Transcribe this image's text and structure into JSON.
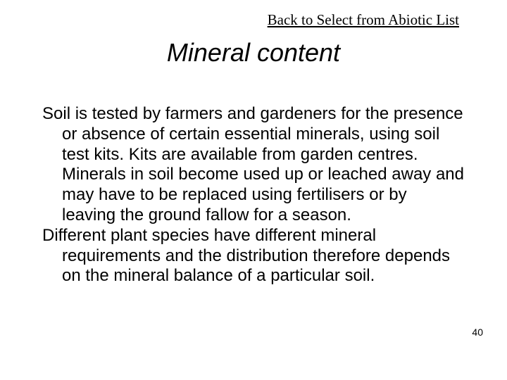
{
  "nav": {
    "back_link_text": "Back to Select from Abiotic List"
  },
  "heading": {
    "title": "Mineral content"
  },
  "content": {
    "paragraph1": "Soil is tested by farmers and gardeners for the presence or absence of certain essential minerals, using soil test kits. Kits are available from garden centres. Minerals in soil become used up or leached away and may have to be replaced using fertilisers or by leaving the ground fallow for a season.",
    "paragraph2": "Different plant species have different mineral requirements and the distribution therefore depends on the mineral balance of a particular soil."
  },
  "footer": {
    "page_number": "40"
  },
  "style": {
    "background_color": "#ffffff",
    "text_color": "#000000",
    "link_color": "#000000",
    "title_fontsize": 36,
    "title_fontstyle": "italic",
    "body_fontsize": 24,
    "link_fontsize": 21,
    "pagenum_fontsize": 14,
    "title_font": "Arial",
    "body_font": "Arial",
    "link_font": "Times New Roman"
  }
}
